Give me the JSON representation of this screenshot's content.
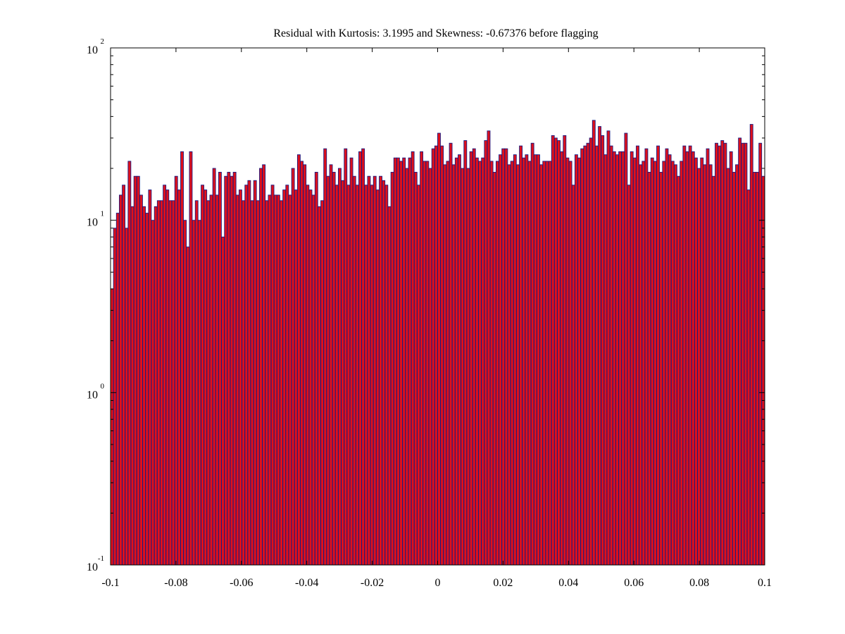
{
  "chart_data": {
    "type": "bar",
    "title": "Residual with Kurtosis: 3.1995 and Skewness: -0.67376 before flagging",
    "xlabel": "",
    "ylabel": "",
    "xlim": [
      -0.1,
      0.1
    ],
    "y_scale": "log",
    "ylim": [
      0.1,
      100
    ],
    "x_ticks": [
      -0.1,
      -0.08,
      -0.06,
      -0.04,
      -0.02,
      0,
      0.02,
      0.04,
      0.06,
      0.08,
      0.1
    ],
    "x_tick_labels": [
      "-0.1",
      "-0.08",
      "-0.06",
      "-0.04",
      "-0.02",
      "0",
      "0.02",
      "0.04",
      "0.06",
      "0.08",
      "0.1"
    ],
    "y_ticks": [
      {
        "value": 0.1,
        "base": "10",
        "exponent": "-1"
      },
      {
        "value": 1,
        "base": "10",
        "exponent": "0"
      },
      {
        "value": 10,
        "base": "10",
        "exponent": "1"
      },
      {
        "value": 100,
        "base": "10",
        "exponent": "2"
      }
    ],
    "bar_color": "#e0101a",
    "edge_color": "#1a1a80",
    "bin_width": 0.000889,
    "values": [
      4,
      9,
      11,
      14,
      16,
      9,
      22,
      12,
      18,
      18,
      14,
      12,
      11,
      15,
      10,
      12,
      13,
      13,
      16,
      15,
      13,
      13,
      18,
      15,
      25,
      10,
      7,
      25,
      10,
      13,
      10,
      16,
      15,
      13,
      14,
      20,
      14,
      19,
      8,
      18,
      19,
      18,
      19,
      14,
      15,
      13,
      16,
      17,
      13,
      17,
      13,
      20,
      21,
      13,
      14,
      16,
      14,
      14,
      13,
      15,
      16,
      14,
      20,
      15,
      24,
      22,
      21,
      16,
      15,
      14,
      19,
      12,
      13,
      26,
      18,
      21,
      19,
      16,
      20,
      17,
      26,
      16,
      23,
      18,
      16,
      25,
      26,
      16,
      18,
      16,
      18,
      15,
      18,
      17,
      16,
      12,
      19,
      23,
      23,
      22,
      23,
      20,
      23,
      25,
      19,
      16,
      25,
      22,
      22,
      20,
      26,
      27,
      32,
      27,
      21,
      22,
      28,
      21,
      23,
      24,
      20,
      29,
      20,
      25,
      26,
      23,
      22,
      23,
      29,
      33,
      22,
      19,
      22,
      24,
      26,
      26,
      21,
      22,
      24,
      21,
      27,
      23,
      24,
      22,
      28,
      24,
      24,
      21,
      22,
      22,
      22,
      31,
      30,
      29,
      25,
      31,
      23,
      22,
      16,
      24,
      23,
      26,
      27,
      28,
      30,
      38,
      27,
      35,
      31,
      24,
      33,
      27,
      25,
      24,
      25,
      25,
      32,
      16,
      25,
      23,
      27,
      21,
      22,
      26,
      19,
      23,
      22,
      27,
      19,
      22,
      26,
      24,
      22,
      21,
      18,
      22,
      27,
      25,
      27,
      25,
      23,
      20,
      23,
      21,
      26,
      21,
      18,
      28,
      27,
      29,
      28,
      20,
      25,
      19,
      21,
      30,
      28,
      28,
      15,
      36,
      19,
      19,
      28,
      18
    ]
  }
}
